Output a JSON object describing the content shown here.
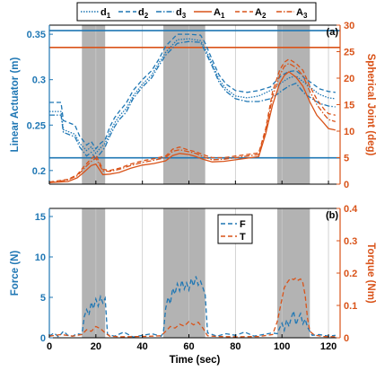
{
  "colors": {
    "blue": "#1f77b4",
    "orange": "#d95319",
    "shade": "#a6a6a6",
    "grid": "#c8c8c8"
  },
  "chart_data": [
    {
      "panel": "(a)",
      "type": "line",
      "xlim": [
        0,
        125
      ],
      "xticks": [
        0,
        20,
        40,
        60,
        80,
        100,
        120
      ],
      "xtick_labels": [
        "",
        "",
        "",
        "",
        "",
        "",
        ""
      ],
      "ylim_left": [
        0.185,
        0.36
      ],
      "yticks_left": [
        0.2,
        0.25,
        0.3,
        0.35
      ],
      "ytick_labels_left": [
        "0.2",
        "0.25",
        "0.3",
        "0.35"
      ],
      "ylabel_left": "Linear Actuator (m)",
      "ylim_right": [
        0,
        30
      ],
      "yticks_right": [
        0,
        5,
        10,
        15,
        20,
        25,
        30
      ],
      "ytick_labels_right": [
        "0",
        "5",
        "10",
        "15",
        "20",
        "25",
        "30"
      ],
      "ylabel_right": "Spherical Joint (deg)",
      "grid_x": true,
      "shaded_intervals": [
        [
          14,
          24
        ],
        [
          49,
          67
        ],
        [
          98,
          112
        ]
      ],
      "hlines": [
        {
          "axis": "left",
          "y": 0.354,
          "color": "blue"
        },
        {
          "axis": "left",
          "y": 0.214,
          "color": "blue"
        },
        {
          "axis": "right",
          "y": 25.8,
          "color": "orange"
        }
      ],
      "legend_position": "top outside",
      "legend": [
        {
          "label": "d",
          "sub": "1",
          "color": "blue",
          "dash": "1.5,1.5"
        },
        {
          "label": "d",
          "sub": "2",
          "color": "blue",
          "dash": "5,3"
        },
        {
          "label": "d",
          "sub": "3",
          "color": "blue",
          "dash": "6,2,1.5,2"
        },
        {
          "label": "A",
          "sub": "1",
          "color": "orange",
          "dash": ""
        },
        {
          "label": "A",
          "sub": "2",
          "color": "orange",
          "dash": "5,3"
        },
        {
          "label": "A",
          "sub": "3",
          "color": "orange",
          "dash": "6,2,1.5,2"
        }
      ],
      "series": [
        {
          "name": "d1",
          "axis": "left",
          "color": "blue",
          "dash": "1.5,1.5",
          "x": [
            0,
            5,
            6,
            11,
            13,
            16,
            18,
            20,
            22,
            24,
            26,
            28,
            30,
            33,
            36,
            40,
            44,
            47,
            50,
            55,
            60,
            65,
            67,
            70,
            73,
            76,
            80,
            85,
            90,
            95,
            98,
            100,
            103,
            106,
            108,
            110,
            113,
            116,
            120,
            123
          ],
          "y": [
            0.265,
            0.265,
            0.245,
            0.24,
            0.23,
            0.222,
            0.226,
            0.219,
            0.225,
            0.23,
            0.242,
            0.252,
            0.26,
            0.268,
            0.282,
            0.295,
            0.305,
            0.318,
            0.33,
            0.344,
            0.345,
            0.343,
            0.334,
            0.318,
            0.3,
            0.29,
            0.282,
            0.28,
            0.282,
            0.288,
            0.293,
            0.297,
            0.302,
            0.304,
            0.3,
            0.296,
            0.29,
            0.284,
            0.28,
            0.279
          ]
        },
        {
          "name": "d2",
          "axis": "left",
          "color": "blue",
          "dash": "5,3",
          "x": [
            0,
            5,
            6,
            11,
            13,
            16,
            18,
            20,
            22,
            24,
            26,
            28,
            30,
            33,
            36,
            40,
            44,
            47,
            50,
            55,
            60,
            65,
            67,
            70,
            73,
            76,
            80,
            85,
            90,
            95,
            98,
            100,
            103,
            106,
            108,
            110,
            113,
            116,
            120,
            123
          ],
          "y": [
            0.275,
            0.275,
            0.255,
            0.25,
            0.238,
            0.228,
            0.232,
            0.224,
            0.23,
            0.234,
            0.248,
            0.258,
            0.265,
            0.274,
            0.288,
            0.3,
            0.31,
            0.322,
            0.337,
            0.35,
            0.35,
            0.349,
            0.34,
            0.322,
            0.305,
            0.295,
            0.288,
            0.286,
            0.288,
            0.292,
            0.3,
            0.305,
            0.309,
            0.31,
            0.306,
            0.301,
            0.296,
            0.29,
            0.287,
            0.286
          ]
        },
        {
          "name": "d3",
          "axis": "left",
          "color": "blue",
          "dash": "6,2,1.5,2",
          "x": [
            0,
            5,
            6,
            11,
            13,
            16,
            18,
            20,
            22,
            24,
            26,
            28,
            30,
            33,
            36,
            40,
            44,
            47,
            50,
            55,
            60,
            65,
            67,
            70,
            73,
            76,
            80,
            85,
            90,
            95,
            98,
            100,
            103,
            106,
            108,
            110,
            113,
            116,
            120,
            123
          ],
          "y": [
            0.261,
            0.261,
            0.242,
            0.237,
            0.226,
            0.216,
            0.22,
            0.213,
            0.219,
            0.226,
            0.238,
            0.248,
            0.256,
            0.264,
            0.279,
            0.292,
            0.302,
            0.315,
            0.327,
            0.34,
            0.342,
            0.341,
            0.331,
            0.315,
            0.297,
            0.287,
            0.279,
            0.276,
            0.276,
            0.279,
            0.284,
            0.288,
            0.293,
            0.296,
            0.29,
            0.284,
            0.279,
            0.274,
            0.271,
            0.27
          ]
        },
        {
          "name": "A1",
          "axis": "right",
          "color": "orange",
          "dash": "",
          "x": [
            0,
            8,
            12,
            15,
            18,
            20,
            23,
            26,
            30,
            35,
            40,
            45,
            50,
            53,
            56,
            60,
            63,
            66,
            70,
            75,
            80,
            85,
            90,
            93,
            96,
            99,
            101,
            103,
            106,
            109,
            112,
            115,
            118,
            120,
            123
          ],
          "y": [
            0.3,
            0.5,
            1.2,
            2.3,
            3.5,
            3.8,
            1.8,
            1.9,
            2.2,
            3.0,
            3.6,
            3.9,
            4.4,
            5.4,
            5.8,
            5.6,
            5.2,
            4.7,
            4.2,
            4.3,
            4.6,
            4.9,
            5.2,
            9.5,
            15,
            19,
            20.5,
            21.2,
            20.2,
            18.5,
            15.5,
            13,
            11.5,
            10.5,
            10.2
          ]
        },
        {
          "name": "A2",
          "axis": "right",
          "color": "orange",
          "dash": "5,3",
          "x": [
            0,
            8,
            12,
            15,
            18,
            20,
            23,
            26,
            30,
            35,
            40,
            45,
            50,
            53,
            56,
            60,
            63,
            66,
            70,
            75,
            80,
            85,
            90,
            93,
            96,
            99,
            101,
            103,
            106,
            109,
            112,
            115,
            118,
            120,
            123
          ],
          "y": [
            0.4,
            0.9,
            1.8,
            3.4,
            4.8,
            5.5,
            2.8,
            2.6,
            3.0,
            3.8,
            4.4,
            4.8,
            5.3,
            6.6,
            7.0,
            6.4,
            6.1,
            5.6,
            5.0,
            5.0,
            5.3,
            5.6,
            5.9,
            10.5,
            17.5,
            21.5,
            23,
            23.6,
            22.8,
            21.5,
            18.5,
            16,
            14.2,
            13.3,
            13
          ]
        },
        {
          "name": "A3",
          "axis": "right",
          "color": "orange",
          "dash": "6,2,1.5,2",
          "x": [
            0,
            8,
            12,
            15,
            18,
            20,
            23,
            26,
            30,
            35,
            40,
            45,
            50,
            53,
            56,
            60,
            63,
            66,
            70,
            75,
            80,
            85,
            90,
            93,
            96,
            99,
            101,
            103,
            106,
            109,
            112,
            115,
            118,
            120,
            123
          ],
          "y": [
            0.3,
            0.8,
            1.6,
            3.0,
            4.3,
            4.9,
            2.5,
            2.4,
            2.8,
            3.5,
            4.1,
            4.5,
            5.0,
            6.2,
            6.5,
            6.1,
            5.8,
            5.2,
            4.6,
            4.7,
            5.0,
            5.3,
            5.6,
            10,
            16.5,
            20.5,
            22.2,
            22.8,
            22,
            20.5,
            17.5,
            15,
            13.2,
            12.2,
            11.8
          ]
        }
      ]
    },
    {
      "panel": "(b)",
      "type": "line",
      "xlim": [
        0,
        125
      ],
      "xticks": [
        0,
        20,
        40,
        60,
        80,
        100,
        120
      ],
      "xtick_labels": [
        "0",
        "20",
        "40",
        "60",
        "80",
        "100",
        "120"
      ],
      "xlabel": "Time (sec)",
      "ylim_left": [
        0,
        16
      ],
      "yticks_left": [
        0,
        5,
        10,
        15
      ],
      "ytick_labels_left": [
        "0",
        "5",
        "10",
        "15"
      ],
      "ylabel_left": "Force (N)",
      "ylim_right": [
        0,
        0.4
      ],
      "yticks_right": [
        0,
        0.1,
        0.2,
        0.3,
        0.4
      ],
      "ytick_labels_right": [
        "0",
        "0.1",
        "0.2",
        "0.3",
        "0.4"
      ],
      "ylabel_right": "Torque (Nm)",
      "grid_x": true,
      "shaded_intervals": [
        [
          14,
          24
        ],
        [
          49,
          67
        ],
        [
          98,
          112
        ]
      ],
      "legend_position": "top-center",
      "legend": [
        {
          "label": "F",
          "color": "blue",
          "dash": "5,3"
        },
        {
          "label": "T",
          "color": "orange",
          "dash": "5,3"
        }
      ],
      "series": [
        {
          "name": "F",
          "axis": "left",
          "color": "blue",
          "dash": "5,3",
          "x": [
            0,
            2,
            4,
            6,
            8,
            10,
            12,
            14,
            15,
            16,
            17,
            18,
            19,
            20,
            21,
            22,
            23,
            24,
            25,
            28,
            32,
            36,
            40,
            44,
            48,
            49,
            50,
            51,
            52,
            53,
            54,
            55,
            56,
            57,
            58,
            59,
            60,
            61,
            62,
            63,
            64,
            65,
            66,
            67,
            68,
            72,
            76,
            80,
            84,
            88,
            92,
            96,
            98,
            99,
            100,
            101,
            102,
            103,
            104,
            105,
            106,
            107,
            108,
            109,
            110,
            111,
            112,
            113,
            116,
            120,
            123
          ],
          "y": [
            0.2,
            0.6,
            0.1,
            0.8,
            0.3,
            0.2,
            0.5,
            0.4,
            2.6,
            3.5,
            2.8,
            4.4,
            3.6,
            4.8,
            3.9,
            5.1,
            4.3,
            4.9,
            0.4,
            0.2,
            0.7,
            0.1,
            0.3,
            0.5,
            0.2,
            0.6,
            3.6,
            5.0,
            4.2,
            6.1,
            5.4,
            6.7,
            5.8,
            7.1,
            6.0,
            6.8,
            5.9,
            7.3,
            6.4,
            7.6,
            6.5,
            7.0,
            6.2,
            5.3,
            0.6,
            0.2,
            0.5,
            0.3,
            0.7,
            0.2,
            0.4,
            0.6,
            0.5,
            1.2,
            1.8,
            0.9,
            2.2,
            1.4,
            2.5,
            3.3,
            1.6,
            2.4,
            3.0,
            1.7,
            2.3,
            1.3,
            0.8,
            0.3,
            0.4,
            0.2,
            0.3
          ]
        },
        {
          "name": "T",
          "axis": "right",
          "color": "orange",
          "dash": "5,3",
          "x": [
            0,
            5,
            10,
            14,
            16,
            18,
            20,
            22,
            24,
            26,
            30,
            40,
            48,
            50,
            52,
            54,
            56,
            58,
            60,
            62,
            64,
            66,
            67,
            68,
            72,
            80,
            90,
            96,
            98,
            100,
            101,
            102,
            103,
            104,
            105,
            106,
            107,
            108,
            109,
            110,
            111,
            112,
            114,
            118,
            123
          ],
          "y": [
            0.005,
            0.01,
            0.005,
            0.01,
            0.025,
            0.02,
            0.035,
            0.028,
            0.015,
            0.005,
            0.003,
            0.004,
            0.006,
            0.02,
            0.035,
            0.03,
            0.042,
            0.036,
            0.05,
            0.04,
            0.048,
            0.03,
            0.018,
            0.006,
            0.004,
            0.003,
            0.004,
            0.01,
            0.05,
            0.12,
            0.155,
            0.168,
            0.178,
            0.183,
            0.18,
            0.185,
            0.178,
            0.182,
            0.17,
            0.13,
            0.06,
            0.02,
            0.008,
            0.004,
            0.003
          ]
        }
      ]
    }
  ]
}
